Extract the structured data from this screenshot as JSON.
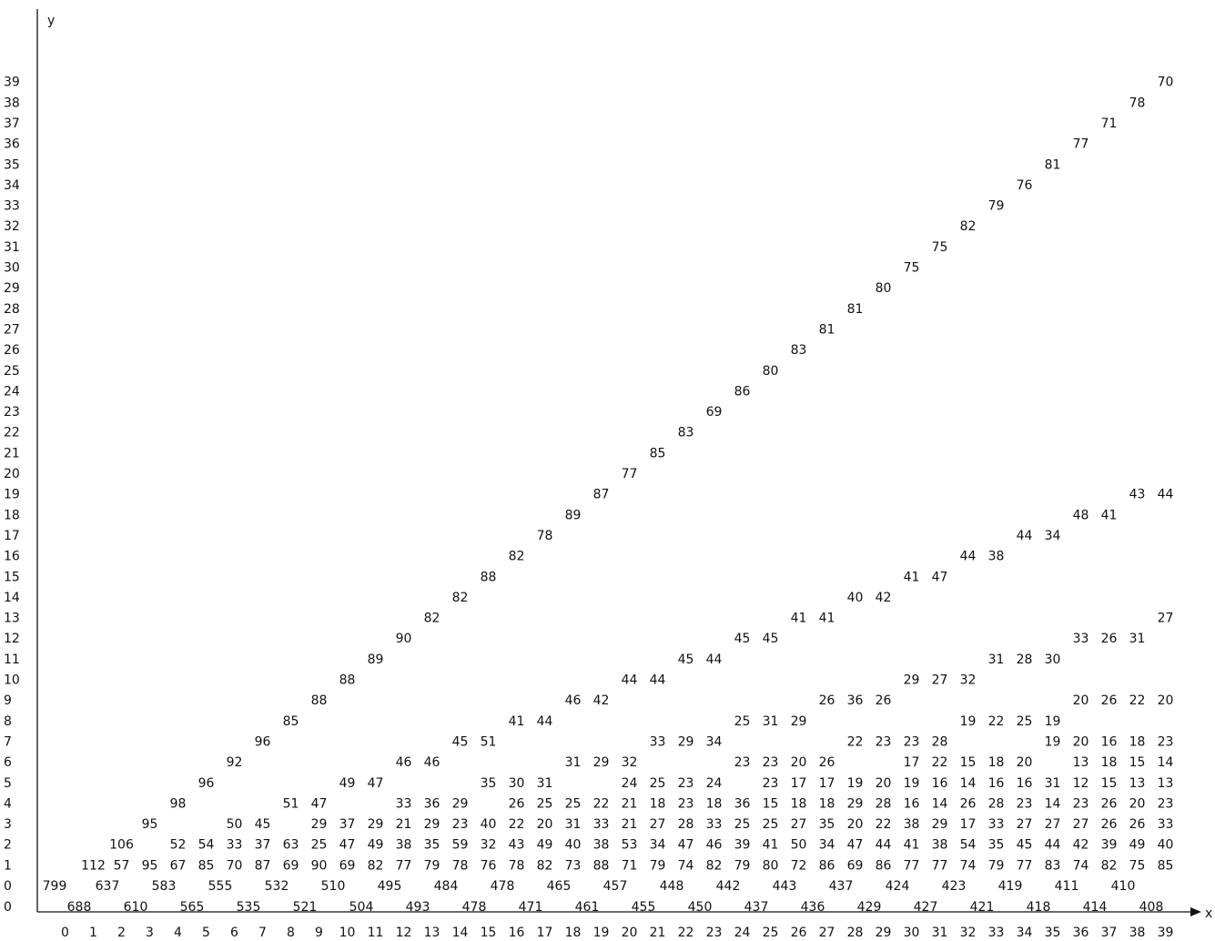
{
  "axes": {
    "x_label": "x",
    "y_label": "y"
  },
  "y_ticks": [
    "0",
    "0",
    "1",
    "2",
    "3",
    "4",
    "5",
    "6",
    "7",
    "8",
    "9",
    "10",
    "11",
    "12",
    "13",
    "14",
    "15",
    "16",
    "17",
    "18",
    "19",
    "20",
    "21",
    "22",
    "23",
    "24",
    "25",
    "26",
    "27",
    "28",
    "29",
    "30",
    "31",
    "32",
    "33",
    "34",
    "35",
    "36",
    "37",
    "38",
    "39"
  ],
  "x_ticks": [
    "0",
    "1",
    "2",
    "3",
    "4",
    "5",
    "6",
    "7",
    "8",
    "9",
    "10",
    "11",
    "12",
    "13",
    "14",
    "15",
    "16",
    "17",
    "18",
    "19",
    "20",
    "21",
    "22",
    "23",
    "24",
    "25",
    "26",
    "27",
    "28",
    "29",
    "30",
    "31",
    "32",
    "33",
    "34",
    "35",
    "36",
    "37",
    "38",
    "39"
  ],
  "bottom_row": [
    "688",
    "610",
    "565",
    "535",
    "521",
    "504",
    "493",
    "478",
    "471",
    "461",
    "455",
    "450",
    "437",
    "436",
    "429",
    "427",
    "421",
    "418",
    "414",
    "408"
  ],
  "row_y0": [
    "799",
    "637",
    "583",
    "555",
    "532",
    "510",
    "495",
    "484",
    "478",
    "465",
    "457",
    "448",
    "442",
    "443",
    "437",
    "424",
    "423",
    "419",
    "411",
    "410"
  ],
  "cells": [
    [
      "1",
      "1",
      "112"
    ],
    [
      "2",
      "1",
      "57"
    ],
    [
      "3",
      "1",
      "95"
    ],
    [
      "4",
      "1",
      "67"
    ],
    [
      "5",
      "1",
      "85"
    ],
    [
      "6",
      "1",
      "70"
    ],
    [
      "7",
      "1",
      "87"
    ],
    [
      "8",
      "1",
      "69"
    ],
    [
      "9",
      "1",
      "90"
    ],
    [
      "10",
      "1",
      "69"
    ],
    [
      "11",
      "1",
      "82"
    ],
    [
      "12",
      "1",
      "77"
    ],
    [
      "13",
      "1",
      "79"
    ],
    [
      "14",
      "1",
      "78"
    ],
    [
      "15",
      "1",
      "76"
    ],
    [
      "16",
      "1",
      "78"
    ],
    [
      "17",
      "1",
      "82"
    ],
    [
      "18",
      "1",
      "73"
    ],
    [
      "19",
      "1",
      "88"
    ],
    [
      "20",
      "1",
      "71"
    ],
    [
      "21",
      "1",
      "79"
    ],
    [
      "22",
      "1",
      "74"
    ],
    [
      "23",
      "1",
      "82"
    ],
    [
      "24",
      "1",
      "79"
    ],
    [
      "25",
      "1",
      "80"
    ],
    [
      "26",
      "1",
      "72"
    ],
    [
      "27",
      "1",
      "86"
    ],
    [
      "28",
      "1",
      "69"
    ],
    [
      "29",
      "1",
      "86"
    ],
    [
      "30",
      "1",
      "77"
    ],
    [
      "31",
      "1",
      "77"
    ],
    [
      "32",
      "1",
      "74"
    ],
    [
      "33",
      "1",
      "79"
    ],
    [
      "34",
      "1",
      "77"
    ],
    [
      "35",
      "1",
      "83"
    ],
    [
      "36",
      "1",
      "74"
    ],
    [
      "37",
      "1",
      "82"
    ],
    [
      "38",
      "1",
      "75"
    ],
    [
      "39",
      "1",
      "85"
    ],
    [
      "2",
      "2",
      "106"
    ],
    [
      "4",
      "2",
      "52"
    ],
    [
      "5",
      "2",
      "54"
    ],
    [
      "6",
      "2",
      "33"
    ],
    [
      "7",
      "2",
      "37"
    ],
    [
      "8",
      "2",
      "63"
    ],
    [
      "9",
      "2",
      "25"
    ],
    [
      "10",
      "2",
      "47"
    ],
    [
      "11",
      "2",
      "49"
    ],
    [
      "12",
      "2",
      "38"
    ],
    [
      "13",
      "2",
      "35"
    ],
    [
      "14",
      "2",
      "59"
    ],
    [
      "15",
      "2",
      "32"
    ],
    [
      "16",
      "2",
      "43"
    ],
    [
      "17",
      "2",
      "49"
    ],
    [
      "18",
      "2",
      "40"
    ],
    [
      "19",
      "2",
      "38"
    ],
    [
      "20",
      "2",
      "53"
    ],
    [
      "21",
      "2",
      "34"
    ],
    [
      "22",
      "2",
      "47"
    ],
    [
      "23",
      "2",
      "46"
    ],
    [
      "24",
      "2",
      "39"
    ],
    [
      "25",
      "2",
      "41"
    ],
    [
      "26",
      "2",
      "50"
    ],
    [
      "27",
      "2",
      "34"
    ],
    [
      "28",
      "2",
      "47"
    ],
    [
      "29",
      "2",
      "44"
    ],
    [
      "30",
      "2",
      "41"
    ],
    [
      "31",
      "2",
      "38"
    ],
    [
      "32",
      "2",
      "54"
    ],
    [
      "33",
      "2",
      "35"
    ],
    [
      "34",
      "2",
      "45"
    ],
    [
      "35",
      "2",
      "44"
    ],
    [
      "36",
      "2",
      "42"
    ],
    [
      "37",
      "2",
      "39"
    ],
    [
      "38",
      "2",
      "49"
    ],
    [
      "39",
      "2",
      "40"
    ],
    [
      "3",
      "3",
      "95"
    ],
    [
      "6",
      "3",
      "50"
    ],
    [
      "7",
      "3",
      "45"
    ],
    [
      "9",
      "3",
      "29"
    ],
    [
      "10",
      "3",
      "37"
    ],
    [
      "11",
      "3",
      "29"
    ],
    [
      "12",
      "3",
      "21"
    ],
    [
      "13",
      "3",
      "29"
    ],
    [
      "14",
      "3",
      "23"
    ],
    [
      "15",
      "3",
      "40"
    ],
    [
      "16",
      "3",
      "22"
    ],
    [
      "17",
      "3",
      "20"
    ],
    [
      "18",
      "3",
      "31"
    ],
    [
      "19",
      "3",
      "33"
    ],
    [
      "20",
      "3",
      "21"
    ],
    [
      "21",
      "3",
      "27"
    ],
    [
      "22",
      "3",
      "28"
    ],
    [
      "23",
      "3",
      "33"
    ],
    [
      "24",
      "3",
      "25"
    ],
    [
      "25",
      "3",
      "25"
    ],
    [
      "26",
      "3",
      "27"
    ],
    [
      "27",
      "3",
      "35"
    ],
    [
      "28",
      "3",
      "20"
    ],
    [
      "29",
      "3",
      "22"
    ],
    [
      "30",
      "3",
      "38"
    ],
    [
      "31",
      "3",
      "29"
    ],
    [
      "32",
      "3",
      "17"
    ],
    [
      "33",
      "3",
      "33"
    ],
    [
      "34",
      "3",
      "27"
    ],
    [
      "35",
      "3",
      "27"
    ],
    [
      "36",
      "3",
      "27"
    ],
    [
      "37",
      "3",
      "26"
    ],
    [
      "38",
      "3",
      "26"
    ],
    [
      "39",
      "3",
      "33"
    ],
    [
      "4",
      "4",
      "98"
    ],
    [
      "8",
      "4",
      "51"
    ],
    [
      "9",
      "4",
      "47"
    ],
    [
      "12",
      "4",
      "33"
    ],
    [
      "13",
      "4",
      "36"
    ],
    [
      "14",
      "4",
      "29"
    ],
    [
      "16",
      "4",
      "26"
    ],
    [
      "17",
      "4",
      "25"
    ],
    [
      "18",
      "4",
      "25"
    ],
    [
      "19",
      "4",
      "22"
    ],
    [
      "20",
      "4",
      "21"
    ],
    [
      "21",
      "4",
      "18"
    ],
    [
      "22",
      "4",
      "23"
    ],
    [
      "23",
      "4",
      "18"
    ],
    [
      "24",
      "4",
      "36"
    ],
    [
      "25",
      "4",
      "15"
    ],
    [
      "26",
      "4",
      "18"
    ],
    [
      "27",
      "4",
      "18"
    ],
    [
      "28",
      "4",
      "29"
    ],
    [
      "29",
      "4",
      "28"
    ],
    [
      "30",
      "4",
      "16"
    ],
    [
      "31",
      "4",
      "14"
    ],
    [
      "32",
      "4",
      "26"
    ],
    [
      "33",
      "4",
      "28"
    ],
    [
      "34",
      "4",
      "23"
    ],
    [
      "35",
      "4",
      "14"
    ],
    [
      "36",
      "4",
      "23"
    ],
    [
      "37",
      "4",
      "26"
    ],
    [
      "38",
      "4",
      "20"
    ],
    [
      "39",
      "4",
      "23"
    ],
    [
      "5",
      "5",
      "96"
    ],
    [
      "10",
      "5",
      "49"
    ],
    [
      "11",
      "5",
      "47"
    ],
    [
      "15",
      "5",
      "35"
    ],
    [
      "16",
      "5",
      "30"
    ],
    [
      "17",
      "5",
      "31"
    ],
    [
      "20",
      "5",
      "24"
    ],
    [
      "21",
      "5",
      "25"
    ],
    [
      "22",
      "5",
      "23"
    ],
    [
      "23",
      "5",
      "24"
    ],
    [
      "25",
      "5",
      "23"
    ],
    [
      "26",
      "5",
      "17"
    ],
    [
      "27",
      "5",
      "17"
    ],
    [
      "28",
      "5",
      "19"
    ],
    [
      "29",
      "5",
      "20"
    ],
    [
      "30",
      "5",
      "19"
    ],
    [
      "31",
      "5",
      "16"
    ],
    [
      "32",
      "5",
      "14"
    ],
    [
      "33",
      "5",
      "16"
    ],
    [
      "34",
      "5",
      "16"
    ],
    [
      "35",
      "5",
      "31"
    ],
    [
      "36",
      "5",
      "12"
    ],
    [
      "37",
      "5",
      "15"
    ],
    [
      "38",
      "5",
      "13"
    ],
    [
      "39",
      "5",
      "13"
    ],
    [
      "6",
      "6",
      "92"
    ],
    [
      "12",
      "6",
      "46"
    ],
    [
      "13",
      "6",
      "46"
    ],
    [
      "18",
      "6",
      "31"
    ],
    [
      "19",
      "6",
      "29"
    ],
    [
      "20",
      "6",
      "32"
    ],
    [
      "24",
      "6",
      "23"
    ],
    [
      "25",
      "6",
      "23"
    ],
    [
      "26",
      "6",
      "20"
    ],
    [
      "27",
      "6",
      "26"
    ],
    [
      "30",
      "6",
      "17"
    ],
    [
      "31",
      "6",
      "22"
    ],
    [
      "32",
      "6",
      "15"
    ],
    [
      "33",
      "6",
      "18"
    ],
    [
      "34",
      "6",
      "20"
    ],
    [
      "36",
      "6",
      "13"
    ],
    [
      "37",
      "6",
      "18"
    ],
    [
      "38",
      "6",
      "15"
    ],
    [
      "39",
      "6",
      "14"
    ],
    [
      "7",
      "7",
      "96"
    ],
    [
      "14",
      "7",
      "45"
    ],
    [
      "15",
      "7",
      "51"
    ],
    [
      "21",
      "7",
      "33"
    ],
    [
      "22",
      "7",
      "29"
    ],
    [
      "23",
      "7",
      "34"
    ],
    [
      "28",
      "7",
      "22"
    ],
    [
      "29",
      "7",
      "23"
    ],
    [
      "30",
      "7",
      "23"
    ],
    [
      "31",
      "7",
      "28"
    ],
    [
      "35",
      "7",
      "19"
    ],
    [
      "36",
      "7",
      "20"
    ],
    [
      "37",
      "7",
      "16"
    ],
    [
      "38",
      "7",
      "18"
    ],
    [
      "39",
      "7",
      "23"
    ],
    [
      "8",
      "8",
      "85"
    ],
    [
      "16",
      "8",
      "41"
    ],
    [
      "17",
      "8",
      "44"
    ],
    [
      "24",
      "8",
      "25"
    ],
    [
      "25",
      "8",
      "31"
    ],
    [
      "26",
      "8",
      "29"
    ],
    [
      "32",
      "8",
      "19"
    ],
    [
      "33",
      "8",
      "22"
    ],
    [
      "34",
      "8",
      "25"
    ],
    [
      "35",
      "8",
      "19"
    ],
    [
      "9",
      "9",
      "88"
    ],
    [
      "18",
      "9",
      "46"
    ],
    [
      "19",
      "9",
      "42"
    ],
    [
      "27",
      "9",
      "26"
    ],
    [
      "28",
      "9",
      "36"
    ],
    [
      "29",
      "9",
      "26"
    ],
    [
      "36",
      "9",
      "20"
    ],
    [
      "37",
      "9",
      "26"
    ],
    [
      "38",
      "9",
      "22"
    ],
    [
      "39",
      "9",
      "20"
    ],
    [
      "10",
      "10",
      "88"
    ],
    [
      "20",
      "10",
      "44"
    ],
    [
      "21",
      "10",
      "44"
    ],
    [
      "30",
      "10",
      "29"
    ],
    [
      "31",
      "10",
      "27"
    ],
    [
      "32",
      "10",
      "32"
    ],
    [
      "11",
      "11",
      "89"
    ],
    [
      "22",
      "11",
      "45"
    ],
    [
      "23",
      "11",
      "44"
    ],
    [
      "33",
      "11",
      "31"
    ],
    [
      "34",
      "11",
      "28"
    ],
    [
      "35",
      "11",
      "30"
    ],
    [
      "12",
      "12",
      "90"
    ],
    [
      "24",
      "12",
      "45"
    ],
    [
      "25",
      "12",
      "45"
    ],
    [
      "36",
      "12",
      "33"
    ],
    [
      "37",
      "12",
      "26"
    ],
    [
      "38",
      "12",
      "31"
    ],
    [
      "13",
      "13",
      "82"
    ],
    [
      "26",
      "13",
      "41"
    ],
    [
      "27",
      "13",
      "41"
    ],
    [
      "39",
      "13",
      "27"
    ],
    [
      "14",
      "14",
      "82"
    ],
    [
      "28",
      "14",
      "40"
    ],
    [
      "29",
      "14",
      "42"
    ],
    [
      "15",
      "15",
      "88"
    ],
    [
      "30",
      "15",
      "41"
    ],
    [
      "31",
      "15",
      "47"
    ],
    [
      "16",
      "16",
      "82"
    ],
    [
      "32",
      "16",
      "44"
    ],
    [
      "33",
      "16",
      "38"
    ],
    [
      "17",
      "17",
      "78"
    ],
    [
      "34",
      "17",
      "44"
    ],
    [
      "35",
      "17",
      "34"
    ],
    [
      "18",
      "18",
      "89"
    ],
    [
      "36",
      "18",
      "48"
    ],
    [
      "37",
      "18",
      "41"
    ],
    [
      "19",
      "19",
      "87"
    ],
    [
      "38",
      "19",
      "43"
    ],
    [
      "39",
      "19",
      "44"
    ],
    [
      "20",
      "20",
      "77"
    ],
    [
      "21",
      "21",
      "85"
    ],
    [
      "22",
      "22",
      "83"
    ],
    [
      "23",
      "23",
      "69"
    ],
    [
      "24",
      "24",
      "86"
    ],
    [
      "25",
      "25",
      "80"
    ],
    [
      "26",
      "26",
      "83"
    ],
    [
      "27",
      "27",
      "81"
    ],
    [
      "28",
      "28",
      "81"
    ],
    [
      "29",
      "29",
      "80"
    ],
    [
      "30",
      "30",
      "75"
    ],
    [
      "31",
      "31",
      "75"
    ],
    [
      "32",
      "32",
      "82"
    ],
    [
      "33",
      "33",
      "79"
    ],
    [
      "34",
      "34",
      "76"
    ],
    [
      "35",
      "35",
      "81"
    ],
    [
      "36",
      "36",
      "77"
    ],
    [
      "37",
      "37",
      "71"
    ],
    [
      "38",
      "38",
      "78"
    ],
    [
      "39",
      "39",
      "70"
    ]
  ]
}
